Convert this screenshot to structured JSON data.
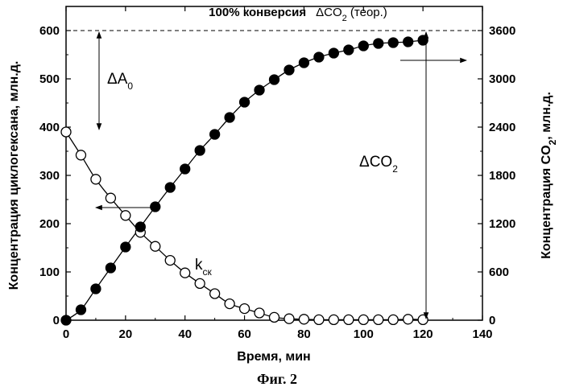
{
  "chart_data": {
    "type": "scatter",
    "xlabel": "Время, мин",
    "ylabel": "Концентрация циклогексана, млн.д.",
    "y2label": {
      "main": "Концентрация CO",
      "sub": "2",
      "tail": ", млн.д."
    },
    "xlim": [
      0,
      140
    ],
    "ylim": [
      0,
      650
    ],
    "y2lim": [
      0,
      3900
    ],
    "xticks": [
      0,
      20,
      40,
      60,
      80,
      100,
      120,
      140
    ],
    "yticks": [
      0,
      100,
      200,
      300,
      400,
      500,
      600
    ],
    "y2ticks": [
      0,
      600,
      1200,
      1800,
      2400,
      3000,
      3600
    ],
    "series": [
      {
        "name": "циклогексан",
        "axis": "left",
        "marker": "open-circle",
        "x": [
          0,
          5,
          10,
          15,
          20,
          25,
          30,
          35,
          40,
          45,
          50,
          55,
          60,
          65,
          70,
          75,
          80,
          85,
          90,
          95,
          100,
          105,
          110,
          115,
          120
        ],
        "y": [
          390,
          342,
          292,
          253,
          217,
          182,
          153,
          124,
          98,
          76,
          55,
          34,
          24,
          15,
          6,
          3,
          2,
          1,
          1,
          1,
          1,
          1,
          1,
          2,
          1
        ]
      },
      {
        "name": "CO2",
        "axis": "right",
        "marker": "filled-circle",
        "x": [
          0,
          5,
          10,
          15,
          20,
          25,
          30,
          35,
          40,
          45,
          50,
          55,
          60,
          65,
          70,
          75,
          80,
          85,
          90,
          95,
          100,
          105,
          110,
          115,
          120
        ],
        "y": [
          0,
          130,
          390,
          650,
          910,
          1160,
          1410,
          1650,
          1880,
          2110,
          2310,
          2520,
          2710,
          2860,
          2990,
          3110,
          3200,
          3270,
          3320,
          3360,
          3410,
          3440,
          3450,
          3460,
          3480
        ]
      }
    ],
    "annotations": {
      "top_line": {
        "bold": "100% конверсия",
        "delta": "ΔCO",
        "sub": "2",
        "tail": " (теор.)"
      },
      "delta_a0": {
        "main": "ΔA",
        "sub": "0"
      },
      "delta_co2": {
        "main": "ΔCO",
        "sub": "2"
      },
      "k_label": {
        "main": "k",
        "sub": "ск"
      }
    },
    "caption": "Фиг. 2"
  }
}
